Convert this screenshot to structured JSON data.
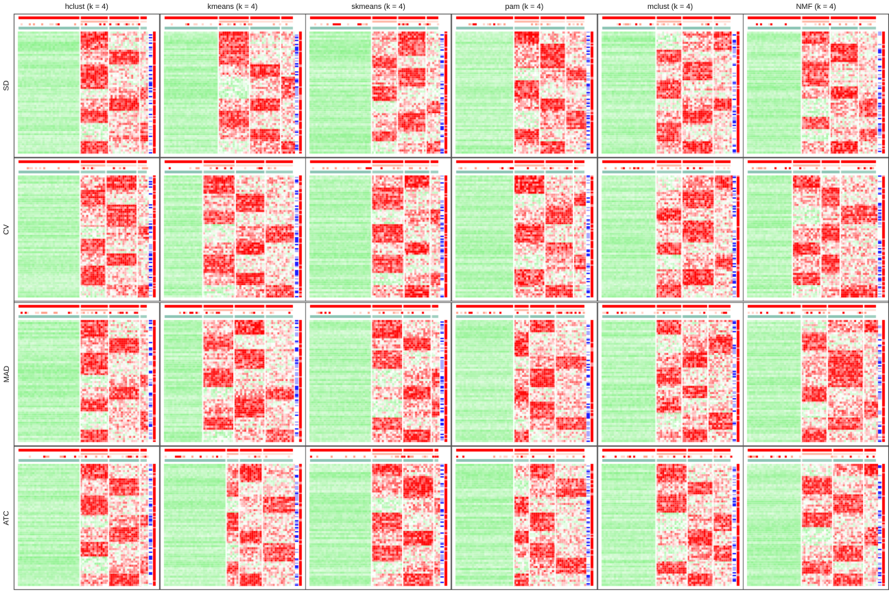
{
  "chart_data": {
    "type": "heatmap",
    "layout": "grid",
    "columns": [
      {
        "method": "hclust",
        "title": "hclust (k = 4)"
      },
      {
        "method": "kmeans",
        "title": "kmeans (k = 4)"
      },
      {
        "method": "skmeans",
        "title": "skmeans (k = 4)"
      },
      {
        "method": "pam",
        "title": "pam (k = 4)"
      },
      {
        "method": "mclust",
        "title": "mclust (k = 4)"
      },
      {
        "method": "NMF",
        "title": "NMF (k = 4)"
      }
    ],
    "rows": [
      {
        "method": "SD",
        "label": "SD"
      },
      {
        "method": "CV",
        "label": "CV"
      },
      {
        "method": "MAD",
        "label": "MAD"
      },
      {
        "method": "ATC",
        "label": "ATC"
      }
    ],
    "k": 4,
    "color_scale": {
      "low": "#7cf07c",
      "mid": "#ffffff",
      "high": "#ff0000"
    },
    "annotation_colors": {
      "cluster": "#ff0000",
      "group": "#7fb8a8",
      "membership": "#0000ff"
    },
    "panels": [
      [
        {
          "column_split": [
            0.48,
            0.22,
            0.24,
            0.06
          ],
          "row_blocks": [
            0.15,
            0.12,
            0.2,
            0.08,
            0.1,
            0.1,
            0.15,
            0.1
          ],
          "block_pattern": [
            1,
            2,
            1,
            3,
            2,
            1,
            3,
            1
          ]
        },
        {
          "column_split": [
            0.42,
            0.24,
            0.24,
            0.1
          ],
          "row_blocks": [
            0.12,
            0.15,
            0.1,
            0.18,
            0.1,
            0.15,
            0.1,
            0.1
          ],
          "block_pattern": [
            1,
            1,
            2,
            3,
            2,
            1,
            2,
            3
          ]
        },
        {
          "column_split": [
            0.48,
            0.2,
            0.22,
            0.1
          ],
          "row_blocks": [
            0.2,
            0.1,
            0.15,
            0.12,
            0.1,
            0.15,
            0.08,
            0.1
          ],
          "block_pattern": [
            2,
            1,
            2,
            1,
            3,
            2,
            1,
            3
          ]
        },
        {
          "column_split": [
            0.45,
            0.2,
            0.2,
            0.15
          ],
          "row_blocks": [
            0.1,
            0.2,
            0.1,
            0.15,
            0.1,
            0.15,
            0.1,
            0.1
          ],
          "block_pattern": [
            1,
            2,
            3,
            1,
            2,
            3,
            1,
            2
          ]
        },
        {
          "column_split": [
            0.42,
            0.2,
            0.24,
            0.14
          ],
          "row_blocks": [
            0.15,
            0.1,
            0.15,
            0.15,
            0.1,
            0.1,
            0.15,
            0.1
          ],
          "block_pattern": [
            3,
            1,
            2,
            1,
            3,
            2,
            1,
            2
          ]
        },
        {
          "column_split": [
            0.42,
            0.22,
            0.22,
            0.14
          ],
          "row_blocks": [
            0.1,
            0.15,
            0.2,
            0.1,
            0.15,
            0.1,
            0.1,
            0.1
          ],
          "block_pattern": [
            1,
            2,
            1,
            2,
            3,
            1,
            3,
            2
          ]
        }
      ],
      [
        {
          "column_split": [
            0.48,
            0.2,
            0.24,
            0.08
          ],
          "row_blocks": [
            0.12,
            0.12,
            0.18,
            0.1,
            0.12,
            0.1,
            0.16,
            0.1
          ],
          "block_pattern": [
            2,
            1,
            2,
            3,
            1,
            2,
            1,
            3
          ]
        },
        {
          "column_split": [
            0.3,
            0.25,
            0.23,
            0.22
          ],
          "row_blocks": [
            0.15,
            0.15,
            0.1,
            0.15,
            0.1,
            0.15,
            0.1,
            0.1
          ],
          "block_pattern": [
            1,
            2,
            1,
            3,
            2,
            1,
            2,
            3
          ]
        },
        {
          "column_split": [
            0.48,
            0.25,
            0.2,
            0.07
          ],
          "row_blocks": [
            0.1,
            0.18,
            0.12,
            0.15,
            0.1,
            0.15,
            0.1,
            0.1
          ],
          "block_pattern": [
            2,
            1,
            3,
            1,
            2,
            1,
            3,
            2
          ]
        },
        {
          "column_split": [
            0.45,
            0.24,
            0.22,
            0.09
          ],
          "row_blocks": [
            0.15,
            0.1,
            0.15,
            0.15,
            0.1,
            0.12,
            0.13,
            0.1
          ],
          "block_pattern": [
            1,
            3,
            2,
            1,
            2,
            3,
            1,
            2
          ]
        },
        {
          "column_split": [
            0.42,
            0.2,
            0.25,
            0.13
          ],
          "row_blocks": [
            0.12,
            0.15,
            0.1,
            0.18,
            0.1,
            0.12,
            0.13,
            0.1
          ],
          "block_pattern": [
            3,
            2,
            1,
            2,
            1,
            3,
            2,
            1
          ]
        },
        {
          "column_split": [
            0.35,
            0.22,
            0.15,
            0.28
          ],
          "row_blocks": [
            0.1,
            0.15,
            0.15,
            0.15,
            0.1,
            0.15,
            0.1,
            0.1
          ],
          "block_pattern": [
            1,
            2,
            3,
            2,
            1,
            2,
            1,
            3
          ]
        }
      ],
      [
        {
          "column_split": [
            0.48,
            0.22,
            0.24,
            0.06
          ],
          "row_blocks": [
            0.15,
            0.12,
            0.18,
            0.1,
            0.1,
            0.1,
            0.15,
            0.1
          ],
          "block_pattern": [
            1,
            2,
            1,
            3,
            2,
            1,
            3,
            1
          ]
        },
        {
          "column_split": [
            0.3,
            0.24,
            0.24,
            0.22
          ],
          "row_blocks": [
            0.12,
            0.12,
            0.16,
            0.15,
            0.1,
            0.15,
            0.1,
            0.1
          ],
          "block_pattern": [
            2,
            1,
            2,
            1,
            3,
            2,
            1,
            3
          ]
        },
        {
          "column_split": [
            0.48,
            0.24,
            0.22,
            0.06
          ],
          "row_blocks": [
            0.15,
            0.1,
            0.15,
            0.15,
            0.1,
            0.15,
            0.1,
            0.1
          ],
          "block_pattern": [
            1,
            2,
            1,
            3,
            2,
            3,
            1,
            2
          ]
        },
        {
          "column_split": [
            0.45,
            0.12,
            0.2,
            0.23
          ],
          "row_blocks": [
            0.1,
            0.2,
            0.1,
            0.15,
            0.12,
            0.13,
            0.1,
            0.1
          ],
          "block_pattern": [
            2,
            1,
            3,
            2,
            1,
            2,
            3,
            1
          ]
        },
        {
          "column_split": [
            0.42,
            0.2,
            0.2,
            0.18
          ],
          "row_blocks": [
            0.12,
            0.15,
            0.12,
            0.15,
            0.1,
            0.12,
            0.14,
            0.1
          ],
          "block_pattern": [
            1,
            3,
            2,
            1,
            2,
            1,
            3,
            2
          ]
        },
        {
          "column_split": [
            0.42,
            0.2,
            0.28,
            0.1
          ],
          "row_blocks": [
            0.1,
            0.15,
            0.15,
            0.15,
            0.12,
            0.13,
            0.1,
            0.1
          ],
          "block_pattern": [
            3,
            1,
            2,
            2,
            1,
            3,
            2,
            1
          ]
        }
      ],
      [
        {
          "column_split": [
            0.48,
            0.22,
            0.24,
            0.06
          ],
          "row_blocks": [
            0.12,
            0.14,
            0.16,
            0.1,
            0.12,
            0.12,
            0.14,
            0.1
          ],
          "block_pattern": [
            1,
            2,
            1,
            3,
            2,
            1,
            3,
            2
          ]
        },
        {
          "column_split": [
            0.48,
            0.1,
            0.18,
            0.24
          ],
          "row_blocks": [
            0.15,
            0.12,
            0.13,
            0.15,
            0.1,
            0.15,
            0.1,
            0.1
          ],
          "block_pattern": [
            2,
            1,
            3,
            1,
            2,
            3,
            1,
            2
          ]
        },
        {
          "column_split": [
            0.48,
            0.24,
            0.24,
            0.04
          ],
          "row_blocks": [
            0.1,
            0.18,
            0.12,
            0.15,
            0.12,
            0.13,
            0.1,
            0.1
          ],
          "block_pattern": [
            1,
            2,
            3,
            1,
            2,
            1,
            3,
            2
          ]
        },
        {
          "column_split": [
            0.45,
            0.12,
            0.2,
            0.23
          ],
          "row_blocks": [
            0.12,
            0.15,
            0.13,
            0.15,
            0.1,
            0.12,
            0.13,
            0.1
          ],
          "block_pattern": [
            2,
            3,
            1,
            2,
            1,
            2,
            3,
            1
          ]
        },
        {
          "column_split": [
            0.42,
            0.24,
            0.2,
            0.14
          ],
          "row_blocks": [
            0.15,
            0.1,
            0.15,
            0.15,
            0.12,
            0.13,
            0.1,
            0.1
          ],
          "block_pattern": [
            1,
            2,
            1,
            3,
            2,
            3,
            1,
            2
          ]
        },
        {
          "column_split": [
            0.42,
            0.24,
            0.24,
            0.1
          ],
          "row_blocks": [
            0.1,
            0.15,
            0.15,
            0.12,
            0.15,
            0.13,
            0.1,
            0.1
          ],
          "block_pattern": [
            3,
            1,
            2,
            1,
            3,
            2,
            1,
            2
          ]
        }
      ]
    ]
  }
}
